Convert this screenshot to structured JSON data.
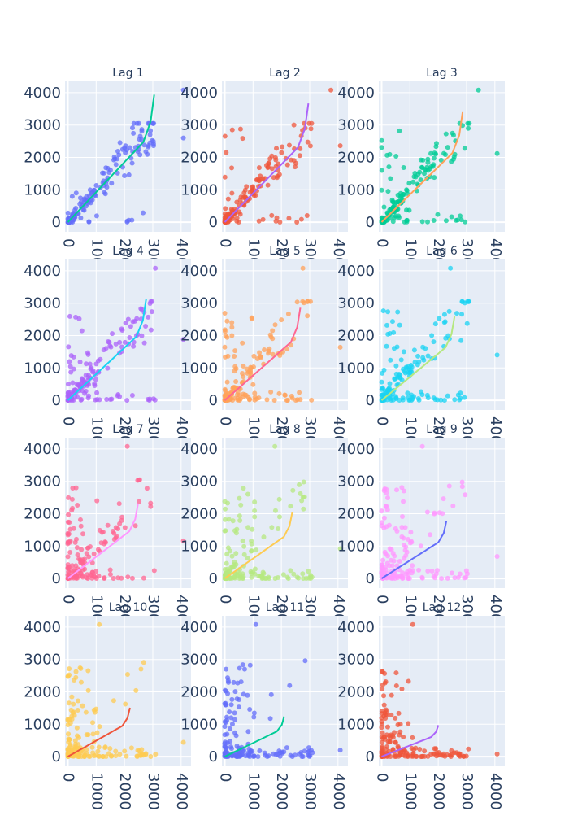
{
  "chart_data": [
    {
      "type": "scatter",
      "title": "Lag 1",
      "marker_color": "#636efa",
      "line_color": "#00cc96",
      "xlim": [
        -100,
        4350
      ],
      "ylim": [
        -300,
        4350
      ],
      "x_ticks": [
        "0",
        "1000",
        "2000",
        "3000",
        "4000"
      ],
      "y_ticks": [
        "0",
        "1000",
        "2000",
        "3000",
        "4000"
      ]
    },
    {
      "type": "scatter",
      "title": "Lag 2",
      "marker_color": "#ef553b",
      "line_color": "#ab63fa",
      "xlim": [
        -100,
        4350
      ],
      "ylim": [
        -300,
        4350
      ],
      "x_ticks": [
        "0",
        "1000",
        "2000",
        "3000",
        "4000"
      ],
      "y_ticks": [
        "0",
        "1000",
        "2000",
        "3000",
        "4000"
      ]
    },
    {
      "type": "scatter",
      "title": "Lag 3",
      "marker_color": "#00cc96",
      "line_color": "#ffa15a",
      "xlim": [
        -100,
        4350
      ],
      "ylim": [
        -300,
        4350
      ],
      "x_ticks": [
        "0",
        "1000",
        "2000",
        "3000",
        "4000"
      ],
      "y_ticks": [
        "0",
        "1000",
        "2000",
        "3000",
        "4000"
      ]
    },
    {
      "type": "scatter",
      "title": "Lag 4",
      "marker_color": "#ab63fa",
      "line_color": "#19d3f3",
      "xlim": [
        -100,
        4350
      ],
      "ylim": [
        -300,
        4350
      ],
      "x_ticks": [
        "0",
        "1000",
        "2000",
        "3000",
        "4000"
      ],
      "y_ticks": [
        "0",
        "1000",
        "2000",
        "3000",
        "4000"
      ]
    },
    {
      "type": "scatter",
      "title": "Lag 5",
      "marker_color": "#ffa15a",
      "line_color": "#ff6692",
      "xlim": [
        -100,
        4350
      ],
      "ylim": [
        -300,
        4350
      ],
      "x_ticks": [
        "0",
        "1000",
        "2000",
        "3000",
        "4000"
      ],
      "y_ticks": [
        "0",
        "1000",
        "2000",
        "3000",
        "4000"
      ]
    },
    {
      "type": "scatter",
      "title": "Lag 6",
      "marker_color": "#19d3f3",
      "line_color": "#b6e880",
      "xlim": [
        -100,
        4350
      ],
      "ylim": [
        -300,
        4350
      ],
      "x_ticks": [
        "0",
        "1000",
        "2000",
        "3000",
        "4000"
      ],
      "y_ticks": [
        "0",
        "1000",
        "2000",
        "3000",
        "4000"
      ]
    },
    {
      "type": "scatter",
      "title": "Lag 7",
      "marker_color": "#ff6692",
      "line_color": "#ff97ff",
      "xlim": [
        -100,
        4350
      ],
      "ylim": [
        -300,
        4350
      ],
      "x_ticks": [
        "0",
        "1000",
        "2000",
        "3000",
        "4000"
      ],
      "y_ticks": [
        "0",
        "1000",
        "2000",
        "3000",
        "4000"
      ]
    },
    {
      "type": "scatter",
      "title": "Lag 8",
      "marker_color": "#b6e880",
      "line_color": "#fecb52",
      "xlim": [
        -100,
        4350
      ],
      "ylim": [
        -300,
        4350
      ],
      "x_ticks": [
        "0",
        "1000",
        "2000",
        "3000",
        "4000"
      ],
      "y_ticks": [
        "0",
        "1000",
        "2000",
        "3000",
        "4000"
      ]
    },
    {
      "type": "scatter",
      "title": "Lag 9",
      "marker_color": "#ff97ff",
      "line_color": "#636efa",
      "xlim": [
        -100,
        4350
      ],
      "ylim": [
        -300,
        4350
      ],
      "x_ticks": [
        "0",
        "1000",
        "2000",
        "3000",
        "4000"
      ],
      "y_ticks": [
        "0",
        "1000",
        "2000",
        "3000",
        "4000"
      ]
    },
    {
      "type": "scatter",
      "title": "Lag 10",
      "marker_color": "#fecb52",
      "line_color": "#ef553b",
      "xlim": [
        -100,
        4350
      ],
      "ylim": [
        -300,
        4350
      ],
      "x_ticks": [
        "0",
        "1000",
        "2000",
        "3000",
        "4000"
      ],
      "y_ticks": [
        "0",
        "1000",
        "2000",
        "3000",
        "4000"
      ]
    },
    {
      "type": "scatter",
      "title": "Lag 11",
      "marker_color": "#636efa",
      "line_color": "#00cc96",
      "xlim": [
        -100,
        4350
      ],
      "ylim": [
        -300,
        4350
      ],
      "x_ticks": [
        "0",
        "1000",
        "2000",
        "3000",
        "4000"
      ],
      "y_ticks": [
        "0",
        "1000",
        "2000",
        "3000",
        "4000"
      ]
    },
    {
      "type": "scatter",
      "title": "Lag 12",
      "marker_color": "#ef553b",
      "line_color": "#ab63fa",
      "xlim": [
        -100,
        4350
      ],
      "ylim": [
        -300,
        4350
      ],
      "x_ticks": [
        "0",
        "1000",
        "2000",
        "3000",
        "4000"
      ],
      "y_ticks": [
        "0",
        "1000",
        "2000",
        "3000",
        "4000"
      ]
    }
  ]
}
